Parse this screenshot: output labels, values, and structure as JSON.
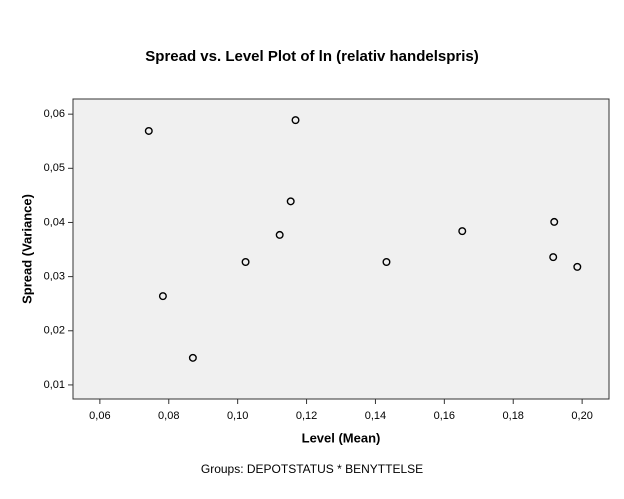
{
  "chart_data": {
    "type": "scatter",
    "title": "Spread vs. Level Plot of ln (relativ handelspris)",
    "x_label": "Level (Mean)",
    "y_label": "Spread (Variance)",
    "footnote": "Groups: DEPOTSTATUS * BENYTTELSE",
    "x": [
      0.0742,
      0.0783,
      0.087,
      0.1023,
      0.1122,
      0.1154,
      0.1168,
      0.1432,
      0.1652,
      0.1919,
      0.1916,
      0.1986
    ],
    "values": [
      0.0569,
      0.0264,
      0.015,
      0.0327,
      0.0377,
      0.0439,
      0.0589,
      0.0327,
      0.0384,
      0.0401,
      0.0336,
      0.0318
    ],
    "color": "#000000",
    "background": "#f0f0f0",
    "xlim": [
      0.0522,
      0.2078
    ],
    "ylim": [
      0.0074,
      0.0628
    ],
    "xticks": [
      {
        "value": 0.06,
        "label": "0,06"
      },
      {
        "value": 0.08,
        "label": "0,08"
      },
      {
        "value": 0.1,
        "label": "0,10"
      },
      {
        "value": 0.12,
        "label": "0,12"
      },
      {
        "value": 0.14,
        "label": "0,14"
      },
      {
        "value": 0.16,
        "label": "0,16"
      },
      {
        "value": 0.18,
        "label": "0,18"
      },
      {
        "value": 0.2,
        "label": "0,20"
      }
    ],
    "yticks": [
      {
        "value": 0.01,
        "label": "0,01"
      },
      {
        "value": 0.02,
        "label": "0,02"
      },
      {
        "value": 0.03,
        "label": "0,03"
      },
      {
        "value": 0.04,
        "label": "0,04"
      },
      {
        "value": 0.05,
        "label": "0,05"
      },
      {
        "value": 0.06,
        "label": "0,06"
      }
    ]
  }
}
